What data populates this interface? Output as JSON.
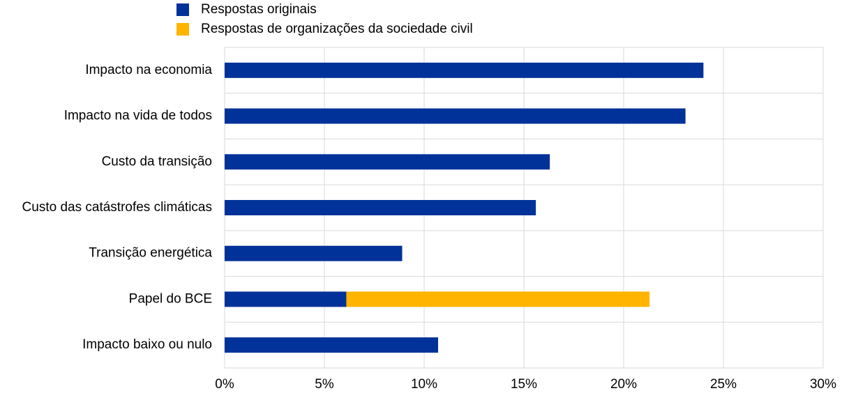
{
  "chart_data": {
    "type": "bar",
    "orientation": "horizontal",
    "stacked": true,
    "categories": [
      "Impacto na economia",
      "Impacto na vida de todos",
      "Custo da transição",
      "Custo das catástrofes climáticas",
      "Transição energética",
      "Papel do BCE",
      "Impacto baixo ou nulo"
    ],
    "series": [
      {
        "name": "Respostas originais",
        "color": "#003299",
        "values": [
          24.0,
          23.1,
          16.3,
          15.6,
          8.9,
          6.1,
          10.7
        ]
      },
      {
        "name": "Respostas de organizações da sociedade civil",
        "color": "#ffb400",
        "values": [
          null,
          null,
          null,
          null,
          null,
          15.2,
          null
        ]
      }
    ],
    "xlim": [
      0,
      30
    ],
    "xticks": [
      {
        "value": 0,
        "label": "0%"
      },
      {
        "value": 5,
        "label": "5%"
      },
      {
        "value": 10,
        "label": "10%"
      },
      {
        "value": 15,
        "label": "15%"
      },
      {
        "value": 20,
        "label": "20%"
      },
      {
        "value": 25,
        "label": "25%"
      },
      {
        "value": 30,
        "label": "30%"
      }
    ],
    "grid": true,
    "legend": "top"
  }
}
